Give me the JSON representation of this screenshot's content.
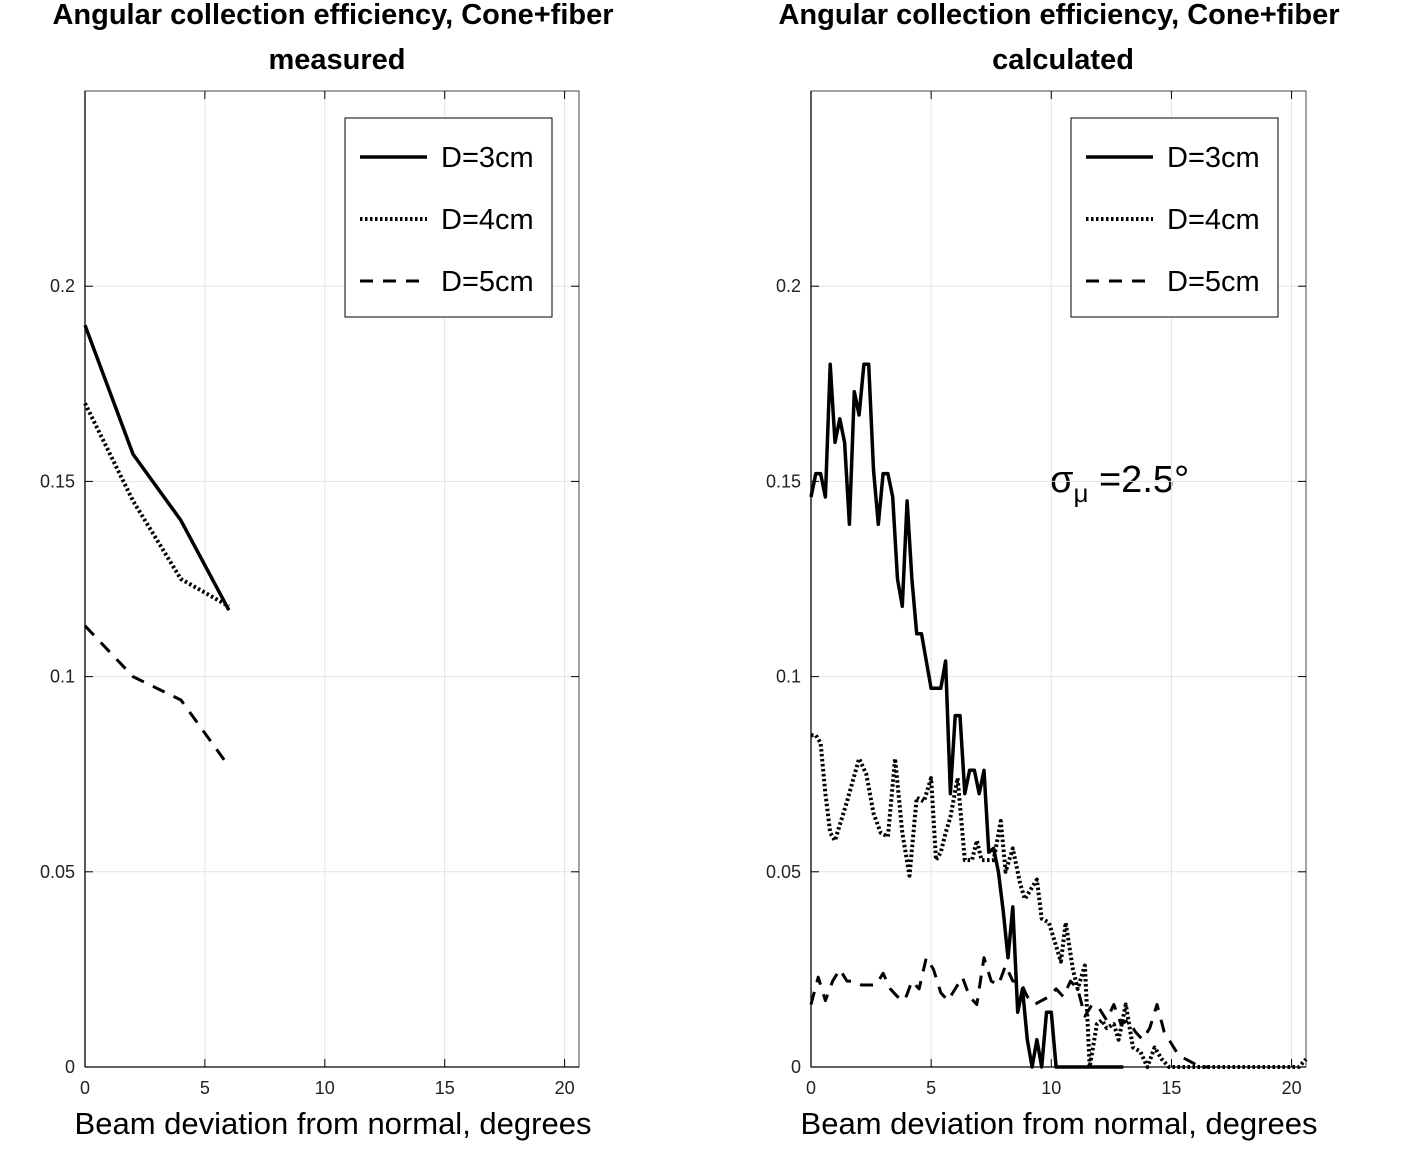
{
  "chart_data": [
    {
      "type": "line",
      "title": "Angular collection efficiency, Cone+fiber",
      "subtitle": "measured",
      "xlabel": "Beam deviation from normal, degrees",
      "ylabel": "",
      "xlim": [
        0,
        20.6
      ],
      "ylim": [
        0,
        0.25
      ],
      "xticks": [
        "0",
        "5",
        "10",
        "15",
        "20"
      ],
      "yticks": [
        "0",
        "0.05",
        "0.1",
        "0.15",
        "0.2"
      ],
      "grid": true,
      "legend_position": "top-right",
      "series": [
        {
          "name": "D=3cm",
          "style": "solid",
          "x": [
            0,
            2,
            4,
            6
          ],
          "y": [
            0.19,
            0.157,
            0.14,
            0.117
          ]
        },
        {
          "name": "D=4cm",
          "style": "dotted",
          "x": [
            0,
            2,
            4,
            6
          ],
          "y": [
            0.17,
            0.145,
            0.125,
            0.118
          ]
        },
        {
          "name": "D=5cm",
          "style": "dashed",
          "x": [
            0,
            2,
            4,
            6
          ],
          "y": [
            0.113,
            0.1,
            0.094,
            0.077
          ]
        }
      ]
    },
    {
      "type": "line",
      "title": "Angular collection efficiency, Cone+fiber",
      "subtitle": "calculated",
      "xlabel": "Beam deviation from normal, degrees",
      "ylabel": "",
      "xlim": [
        0,
        20.6
      ],
      "ylim": [
        0,
        0.25
      ],
      "xticks": [
        "0",
        "5",
        "10",
        "15",
        "20"
      ],
      "yticks": [
        "0",
        "0.05",
        "0.1",
        "0.15",
        "0.2"
      ],
      "grid": true,
      "legend_position": "top-right",
      "annotation": {
        "symbol": "σ",
        "subscript": "μ",
        "text": " =2.5°"
      },
      "series": [
        {
          "name": "D=3cm",
          "style": "solid",
          "x": [
            0,
            0.2,
            0.4,
            0.6,
            0.8,
            1.0,
            1.2,
            1.4,
            1.6,
            1.8,
            2.0,
            2.2,
            2.4,
            2.6,
            2.8,
            3.0,
            3.2,
            3.4,
            3.6,
            3.8,
            4.0,
            4.2,
            4.4,
            4.6,
            4.8,
            5.0,
            5.2,
            5.4,
            5.6,
            5.8,
            6.0,
            6.2,
            6.4,
            6.6,
            6.8,
            7.0,
            7.2,
            7.4,
            7.6,
            7.8,
            8.0,
            8.2,
            8.4,
            8.6,
            8.8,
            9.0,
            9.2,
            9.4,
            9.6,
            9.8,
            10.0,
            10.2,
            10.4,
            10.6,
            10.8,
            11.0,
            11.2,
            11.4,
            11.6,
            11.8,
            12.0,
            12.2,
            12.4,
            12.6,
            12.8,
            13.0
          ],
          "y": [
            0.146,
            0.152,
            0.152,
            0.146,
            0.18,
            0.16,
            0.166,
            0.16,
            0.139,
            0.173,
            0.167,
            0.18,
            0.18,
            0.153,
            0.139,
            0.152,
            0.152,
            0.146,
            0.125,
            0.118,
            0.145,
            0.125,
            0.111,
            0.111,
            0.104,
            0.097,
            0.097,
            0.097,
            0.104,
            0.07,
            0.09,
            0.09,
            0.07,
            0.076,
            0.076,
            0.07,
            0.076,
            0.055,
            0.056,
            0.05,
            0.04,
            0.028,
            0.041,
            0.014,
            0.02,
            0.007,
            0.0,
            0.007,
            0.0,
            0.014,
            0.014,
            0.0,
            0.0,
            0.0,
            0.0,
            0.0,
            0.0,
            0.0,
            0.0,
            0.0,
            0.0,
            0.0,
            0.0,
            0.0,
            0.0,
            0.0
          ]
        },
        {
          "name": "D=4cm",
          "style": "dotted",
          "x": [
            0,
            0.2,
            0.4,
            0.6,
            0.8,
            1.0,
            1.5,
            2.0,
            2.3,
            2.6,
            2.9,
            3.2,
            3.5,
            3.8,
            4.1,
            4.4,
            4.7,
            5.0,
            5.2,
            5.4,
            5.6,
            5.8,
            6.1,
            6.4,
            6.7,
            6.9,
            7.1,
            7.3,
            7.6,
            7.9,
            8.1,
            8.4,
            8.7,
            8.9,
            9.2,
            9.4,
            9.6,
            9.9,
            10.1,
            10.4,
            10.6,
            10.9,
            11.1,
            11.4,
            11.6,
            11.9,
            12.1,
            12.3,
            12.6,
            12.8,
            13.1,
            13.4,
            13.7,
            14.0,
            14.3,
            14.6,
            14.9,
            15.2,
            15.5,
            15.8,
            16.1,
            16.4,
            16.7,
            17.0,
            17.3,
            17.6,
            17.9,
            18.2,
            18.5,
            18.8,
            19.1,
            19.4,
            19.7,
            20.0,
            20.3,
            20.6
          ],
          "y": [
            0.085,
            0.085,
            0.083,
            0.07,
            0.06,
            0.058,
            0.068,
            0.079,
            0.075,
            0.065,
            0.06,
            0.059,
            0.079,
            0.06,
            0.049,
            0.069,
            0.068,
            0.074,
            0.053,
            0.055,
            0.06,
            0.064,
            0.074,
            0.053,
            0.053,
            0.058,
            0.053,
            0.053,
            0.053,
            0.063,
            0.05,
            0.056,
            0.047,
            0.043,
            0.046,
            0.048,
            0.038,
            0.037,
            0.033,
            0.027,
            0.037,
            0.025,
            0.02,
            0.026,
            0.0,
            0.011,
            0.012,
            0.01,
            0.011,
            0.007,
            0.016,
            0.005,
            0.004,
            0.0,
            0.005,
            0.002,
            0.0,
            0.0,
            0.0,
            0.0,
            0.0,
            0.0,
            0.0,
            0.0,
            0.0,
            0.0,
            0.0,
            0.0,
            0.0,
            0.0,
            0.0,
            0.0,
            0.0,
            0.0,
            0.0,
            0.002
          ]
        },
        {
          "name": "D=5cm",
          "style": "dashed",
          "x": [
            0,
            0.3,
            0.6,
            0.9,
            1.2,
            1.5,
            1.8,
            2.1,
            2.4,
            2.7,
            3.0,
            3.3,
            3.6,
            3.9,
            4.2,
            4.5,
            4.8,
            5.1,
            5.4,
            5.7,
            6.0,
            6.3,
            6.6,
            6.9,
            7.2,
            7.5,
            7.8,
            8.1,
            8.4,
            8.7,
            9.0,
            9.3,
            9.6,
            9.9,
            10.2,
            10.5,
            10.8,
            11.1,
            11.4,
            11.7,
            12.0,
            12.3,
            12.6,
            12.9,
            13.2,
            13.5,
            13.8,
            14.1,
            14.4,
            14.7,
            15.0,
            15.3,
            15.6,
            15.9,
            16.2,
            16.5
          ],
          "y": [
            0.016,
            0.023,
            0.017,
            0.022,
            0.025,
            0.022,
            0.022,
            0.021,
            0.021,
            0.021,
            0.024,
            0.02,
            0.018,
            0.017,
            0.022,
            0.02,
            0.028,
            0.025,
            0.019,
            0.017,
            0.02,
            0.023,
            0.018,
            0.016,
            0.028,
            0.022,
            0.021,
            0.026,
            0.022,
            0.022,
            0.018,
            0.016,
            0.017,
            0.018,
            0.02,
            0.018,
            0.022,
            0.02,
            0.013,
            0.016,
            0.015,
            0.012,
            0.016,
            0.011,
            0.012,
            0.009,
            0.007,
            0.01,
            0.016,
            0.009,
            0.006,
            0.003,
            0.002,
            0.001,
            0.0,
            0.0
          ]
        }
      ]
    }
  ]
}
